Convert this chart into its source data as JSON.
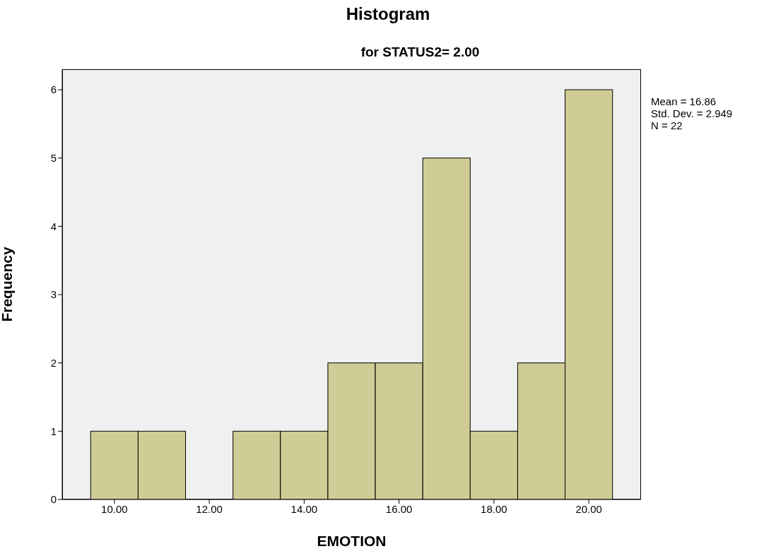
{
  "chart_data": {
    "type": "histogram",
    "title": "Histogram",
    "subtitle": "for STATUS2= 2.00",
    "xlabel": "EMOTION",
    "ylabel": "Frequency",
    "bins": [
      9.5,
      10.5,
      11.5,
      12.5,
      13.5,
      14.5,
      15.5,
      16.5,
      17.5,
      18.5,
      19.5,
      20.5
    ],
    "values": [
      1,
      1,
      0,
      1,
      1,
      2,
      2,
      5,
      1,
      2,
      6
    ],
    "color": "#d0cc96",
    "xlim": [
      8.9,
      21.1
    ],
    "xticks": [
      {
        "value": 10,
        "label": "10.00"
      },
      {
        "value": 12,
        "label": "12.00"
      },
      {
        "value": 14,
        "label": "14.00"
      },
      {
        "value": 16,
        "label": "16.00"
      },
      {
        "value": 18,
        "label": "18.00"
      },
      {
        "value": 20,
        "label": "20.00"
      }
    ],
    "ylim": [
      0,
      6.3
    ],
    "yticks": [
      0,
      1,
      2,
      3,
      4,
      5,
      6
    ],
    "annotations": [
      "Mean = 16.86",
      "Std. Dev. = 2.949",
      "N = 22"
    ]
  }
}
